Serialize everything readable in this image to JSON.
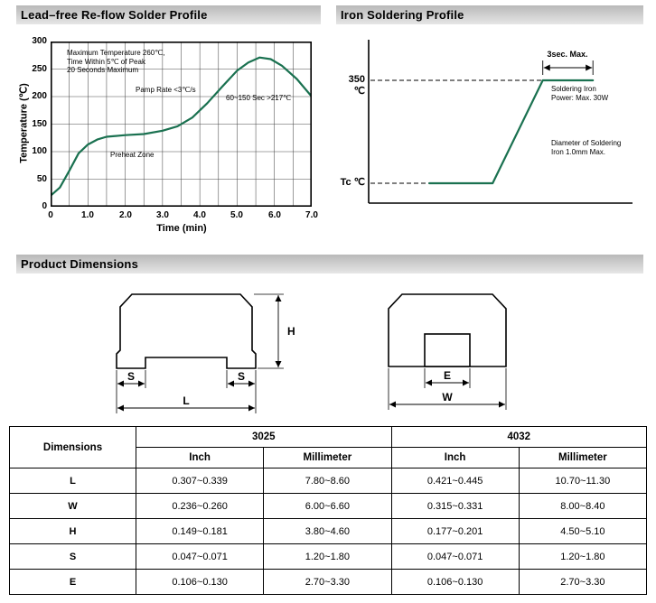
{
  "page": {
    "bg": "#ffffff",
    "accent_green": "#1a7150"
  },
  "sections": {
    "reflow_title": "Lead–free Re-flow Solder Profile",
    "iron_title": "Iron Soldering Profile",
    "dimensions": {
      "title": "Product Dimensions",
      "labels": {
        "L": "L",
        "W": "W",
        "H": "H",
        "S": "S",
        "E": "E"
      },
      "table": {
        "corner_header": "Dimensions",
        "groups": [
          "3025",
          "4032"
        ],
        "subheaders": [
          "Inch",
          "Millimeter",
          "Inch",
          "Millimeter"
        ],
        "rows": [
          {
            "dim": "L",
            "values": [
              "0.307~0.339",
              "7.80~8.60",
              "0.421~0.445",
              "10.70~11.30"
            ]
          },
          {
            "dim": "W",
            "values": [
              "0.236~0.260",
              "6.00~6.60",
              "0.315~0.331",
              "8.00~8.40"
            ]
          },
          {
            "dim": "H",
            "values": [
              "0.149~0.181",
              "3.80~4.60",
              "0.177~0.201",
              "4.50~5.10"
            ]
          },
          {
            "dim": "S",
            "values": [
              "0.047~0.071",
              "1.20~1.80",
              "0.047~0.071",
              "1.20~1.80"
            ]
          },
          {
            "dim": "E",
            "values": [
              "0.106~0.130",
              "2.70~3.30",
              "0.106~0.130",
              "2.70~3.30"
            ]
          }
        ]
      }
    }
  },
  "chart_data": [
    {
      "type": "line",
      "title": "Lead–free Re-flow Solder Profile",
      "xlabel": "Time (min)",
      "ylabel": "Temperature (℃)",
      "xlim": [
        0,
        7
      ],
      "ylim": [
        0,
        300
      ],
      "xticks": [
        "0",
        "1.0",
        "2.0",
        "3.0",
        "4.0",
        "5.0",
        "6.0",
        "7.0"
      ],
      "yticks": [
        "0",
        "50",
        "100",
        "150",
        "200",
        "250",
        "300"
      ],
      "grid": true,
      "legend": false,
      "line_color": "#1a7150",
      "points": [
        [
          0,
          20
        ],
        [
          0.25,
          35
        ],
        [
          0.5,
          65
        ],
        [
          0.75,
          97
        ],
        [
          1.0,
          113
        ],
        [
          1.25,
          122
        ],
        [
          1.5,
          127
        ],
        [
          2.0,
          130
        ],
        [
          2.5,
          132
        ],
        [
          3.0,
          138
        ],
        [
          3.4,
          146
        ],
        [
          3.8,
          162
        ],
        [
          4.2,
          188
        ],
        [
          4.6,
          218
        ],
        [
          5.0,
          247
        ],
        [
          5.3,
          262
        ],
        [
          5.6,
          271
        ],
        [
          5.9,
          268
        ],
        [
          6.2,
          256
        ],
        [
          6.6,
          232
        ],
        [
          7.0,
          200
        ]
      ],
      "annotations": {
        "max_temp_lines": [
          "Maximum Temperature 260℃,",
          "Time Within 5℃ of Peak",
          "20 Seconds Maximum"
        ],
        "ramp_rate": "Pamp Rate <3℃/s",
        "time_above_217": "60~150 Sec >217℃",
        "preheat_zone": "Preheat Zone"
      }
    },
    {
      "type": "line",
      "title": "Iron Soldering Profile",
      "y_levels": {
        "high": "350 ℃",
        "low": "Tc ℃"
      },
      "line_color": "#1a7150",
      "profile_points_norm": [
        [
          0.23,
          0
        ],
        [
          0.47,
          0
        ],
        [
          0.66,
          1
        ],
        [
          0.85,
          1
        ]
      ],
      "annotations": {
        "duration": "3sec. Max.",
        "power_lines": [
          "Soldering Iron",
          "Power: Max. 30W"
        ],
        "diameter_lines": [
          "Diameter of Soldering",
          "Iron 1.0mm Max."
        ]
      }
    }
  ]
}
